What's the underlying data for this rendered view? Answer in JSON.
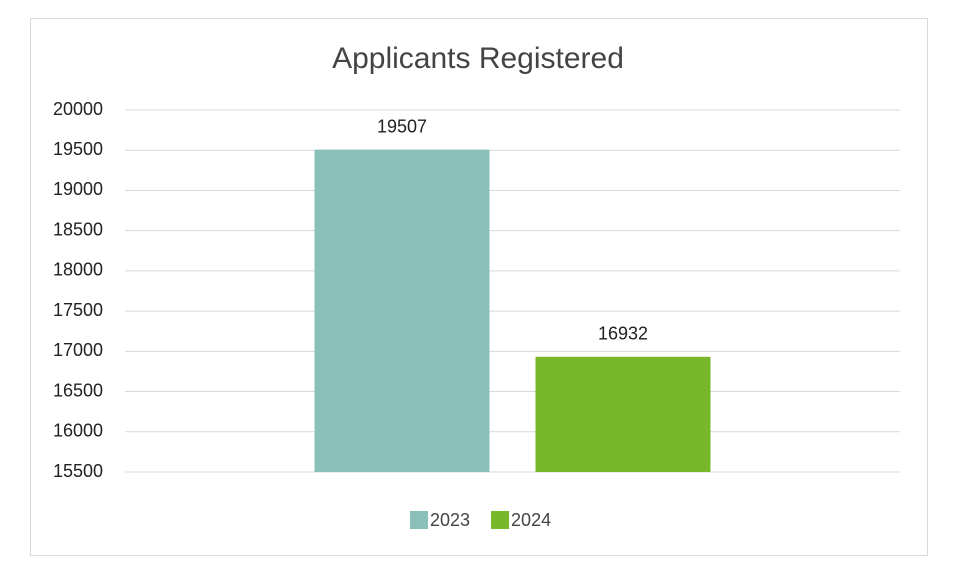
{
  "chart_data": {
    "type": "bar",
    "title": "Applicants Registered",
    "categories": [
      null
    ],
    "series": [
      {
        "name": "2023",
        "color": "#8bbfb9",
        "values": [
          19507
        ]
      },
      {
        "name": "2024",
        "color": "#78b72a",
        "values": [
          16932
        ]
      }
    ],
    "ylim": [
      15500,
      20000
    ],
    "yticks": [
      15500,
      16000,
      16500,
      17000,
      17500,
      18000,
      18500,
      19000,
      19500,
      20000
    ],
    "grid": true,
    "legend": "bottom",
    "data_labels": true
  }
}
